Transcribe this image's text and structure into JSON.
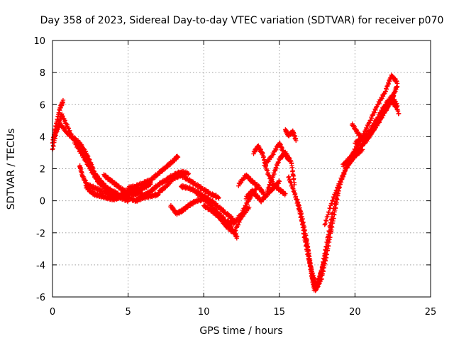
{
  "chart_data": {
    "type": "scatter",
    "title": "Day 358 of 2023, Sidereal Day-to-day VTEC variation (SDTVAR) for receiver p070",
    "xlabel": "GPS time / hours",
    "ylabel": "SDTVAR / TECUs",
    "xlim": [
      0,
      25
    ],
    "ylim": [
      -6,
      10
    ],
    "xticks": [
      0,
      5,
      10,
      15,
      20,
      25
    ],
    "yticks": [
      -6,
      -4,
      -2,
      0,
      2,
      4,
      6,
      8,
      10
    ],
    "xtick_labels": [
      "0",
      "5",
      "10",
      "15",
      "20",
      "25"
    ],
    "ytick_labels": [
      "-6",
      "-4",
      "-2",
      "0",
      "2",
      "4",
      "6",
      "8",
      "10"
    ],
    "grid": true,
    "marker": "plus",
    "series": [
      {
        "color": "#ff0000",
        "tracks": [
          {
            "x": [
              0.0,
              0.3,
              0.6,
              1.0,
              1.5,
              2.0,
              2.5,
              3.0,
              3.5,
              4.0,
              4.5,
              5.0,
              5.5,
              6.0
            ],
            "y": [
              3.2,
              4.5,
              5.4,
              4.6,
              3.6,
              2.8,
              2.0,
              1.2,
              0.8,
              0.4,
              0.3,
              0.5,
              0.6,
              0.4
            ]
          },
          {
            "x": [
              0.0,
              0.2,
              0.5,
              0.7
            ],
            "y": [
              3.6,
              4.6,
              5.8,
              6.2
            ]
          },
          {
            "x": [
              0.1,
              0.5,
              1.0,
              1.5,
              2.0,
              2.5,
              3.0,
              3.5,
              4.0,
              4.5,
              5.0,
              5.5,
              6.0,
              6.5,
              7.0
            ],
            "y": [
              4.0,
              4.8,
              4.2,
              3.8,
              3.0,
              2.0,
              1.3,
              0.8,
              0.6,
              0.3,
              0.2,
              0.0,
              0.2,
              0.3,
              0.4
            ]
          },
          {
            "x": [
              1.3,
              1.8,
              2.2,
              2.5,
              2.8,
              3.2,
              3.6,
              4.0,
              4.5,
              5.0
            ],
            "y": [
              4.0,
              3.6,
              3.0,
              2.4,
              1.7,
              1.2,
              0.8,
              0.5,
              0.2,
              0.0
            ]
          },
          {
            "x": [
              1.8,
              2.0,
              2.3,
              2.8,
              3.3,
              3.8,
              4.3
            ],
            "y": [
              2.2,
              1.5,
              1.0,
              0.8,
              0.6,
              0.4,
              0.2
            ]
          },
          {
            "x": [
              3.4,
              3.8,
              4.2,
              4.6,
              5.0,
              5.4,
              5.8
            ],
            "y": [
              1.6,
              1.3,
              1.0,
              0.7,
              0.5,
              0.4,
              0.5
            ]
          },
          {
            "x": [
              2.2,
              2.5,
              2.8,
              3.2,
              3.6,
              4.0,
              4.4,
              4.8,
              5.2,
              5.6
            ],
            "y": [
              0.9,
              0.6,
              0.4,
              0.3,
              0.2,
              0.1,
              0.2,
              0.3,
              0.5,
              0.9
            ]
          },
          {
            "x": [
              4.2,
              4.6,
              5.0,
              5.4,
              5.8,
              6.2,
              6.5
            ],
            "y": [
              0.2,
              0.4,
              0.6,
              0.8,
              0.7,
              0.9,
              1.1
            ]
          },
          {
            "x": [
              5.0,
              5.5,
              6.0,
              6.5,
              7.0,
              7.5,
              8.0,
              8.3
            ],
            "y": [
              0.8,
              0.9,
              1.1,
              1.3,
              1.7,
              2.1,
              2.5,
              2.8
            ]
          },
          {
            "x": [
              5.5,
              6.0,
              6.5,
              7.0,
              7.5,
              8.0,
              8.5,
              9.0
            ],
            "y": [
              0.0,
              0.3,
              0.6,
              1.0,
              1.3,
              1.6,
              1.8,
              1.7
            ]
          },
          {
            "x": [
              7.0,
              7.5,
              8.0,
              8.5,
              9.0,
              9.5,
              10.0,
              10.5,
              11.0
            ],
            "y": [
              0.5,
              0.9,
              1.4,
              1.6,
              1.3,
              1.0,
              0.7,
              0.4,
              0.2
            ]
          },
          {
            "x": [
              7.8,
              8.2,
              8.6,
              9.0,
              9.5,
              10.0,
              10.5
            ],
            "y": [
              -0.3,
              -0.8,
              -0.6,
              -0.3,
              0.0,
              0.1,
              -0.1
            ]
          },
          {
            "x": [
              8.5,
              9.0,
              9.5,
              10.0,
              10.5,
              11.0,
              11.5,
              12.0
            ],
            "y": [
              0.9,
              0.8,
              0.6,
              0.3,
              0.0,
              -0.4,
              -0.8,
              -1.2
            ]
          },
          {
            "x": [
              9.5,
              10.0,
              10.5,
              11.0,
              11.5,
              12.0,
              12.2
            ],
            "y": [
              0.5,
              0.2,
              -0.3,
              -0.8,
              -1.3,
              -1.9,
              -2.3
            ]
          },
          {
            "x": [
              10.0,
              10.5,
              11.0,
              11.5,
              12.0,
              12.5,
              13.0
            ],
            "y": [
              -0.3,
              -0.6,
              -1.0,
              -1.6,
              -2.0,
              -1.0,
              -0.4
            ]
          },
          {
            "x": [
              11.0,
              11.5,
              12.0,
              12.5,
              13.0,
              13.5
            ],
            "y": [
              -1.0,
              -1.3,
              -1.4,
              -0.8,
              0.1,
              0.8
            ]
          },
          {
            "x": [
              12.3,
              12.8,
              13.2,
              13.6,
              14.0
            ],
            "y": [
              1.0,
              1.6,
              1.2,
              0.9,
              0.4
            ]
          },
          {
            "x": [
              12.8,
              13.2,
              13.5,
              13.8,
              14.2,
              14.6,
              15.0
            ],
            "y": [
              0.2,
              0.6,
              0.3,
              0.0,
              0.4,
              0.8,
              1.2
            ]
          },
          {
            "x": [
              13.3,
              13.6,
              13.9,
              14.2,
              14.6,
              15.0,
              15.4
            ],
            "y": [
              3.0,
              3.4,
              2.9,
              1.8,
              1.0,
              0.7,
              0.4
            ]
          },
          {
            "x": [
              14.0,
              14.5,
              15.0,
              15.3,
              15.6
            ],
            "y": [
              2.2,
              2.8,
              3.6,
              3.0,
              2.6
            ]
          },
          {
            "x": [
              14.2,
              14.6,
              15.0,
              15.4,
              15.8,
              16.0
            ],
            "y": [
              0.6,
              1.6,
              2.6,
              3.0,
              2.4,
              1.0
            ]
          },
          {
            "x": [
              15.4,
              15.6,
              15.9,
              16.1
            ],
            "y": [
              4.4,
              4.1,
              4.3,
              3.8
            ]
          },
          {
            "x": [
              15.6,
              16.0,
              16.3,
              16.6,
              16.9,
              17.1,
              17.3,
              17.5,
              17.8,
              18.1,
              18.5,
              19.0,
              19.4,
              19.8,
              20.2
            ],
            "y": [
              1.5,
              0.5,
              -0.5,
              -1.8,
              -3.2,
              -4.5,
              -5.5,
              -5.2,
              -4.3,
              -2.8,
              -0.8,
              1.0,
              2.0,
              2.6,
              3.0
            ]
          },
          {
            "x": [
              16.2,
              16.5,
              16.8,
              17.0,
              17.2,
              17.4,
              17.6,
              17.9,
              18.2,
              18.5
            ],
            "y": [
              0.0,
              -1.0,
              -2.4,
              -3.6,
              -4.8,
              -5.6,
              -5.0,
              -4.0,
              -2.5,
              -1.0
            ]
          },
          {
            "x": [
              16.6,
              16.9,
              17.2,
              17.5,
              17.8,
              18.1,
              18.4,
              18.7,
              19.0
            ],
            "y": [
              -2.0,
              -3.5,
              -4.6,
              -5.4,
              -4.8,
              -3.5,
              -2.0,
              -0.5,
              1.0
            ]
          },
          {
            "x": [
              18.0,
              18.5,
              19.0,
              19.5,
              20.0,
              20.5
            ],
            "y": [
              -1.5,
              0.0,
              1.2,
              2.2,
              2.8,
              3.2
            ]
          },
          {
            "x": [
              19.2,
              19.6,
              20.0,
              20.5,
              21.0,
              21.5,
              22.0,
              22.5,
              22.8
            ],
            "y": [
              2.2,
              2.6,
              3.0,
              3.5,
              4.2,
              4.8,
              5.6,
              6.5,
              7.2
            ]
          },
          {
            "x": [
              19.6,
              20.0,
              20.5,
              21.0,
              21.5,
              22.0,
              22.4,
              22.8
            ],
            "y": [
              2.5,
              3.2,
              4.0,
              5.0,
              6.0,
              6.8,
              7.8,
              7.4
            ]
          },
          {
            "x": [
              19.8,
              20.2,
              20.6,
              21.0,
              21.5,
              22.0,
              22.4,
              22.8
            ],
            "y": [
              4.8,
              4.2,
              3.8,
              4.1,
              4.8,
              5.6,
              6.2,
              5.8
            ]
          },
          {
            "x": [
              20.0,
              20.5,
              21.0,
              21.5,
              22.0,
              22.5,
              22.9
            ],
            "y": [
              3.6,
              3.9,
              4.4,
              5.2,
              6.0,
              6.6,
              5.4
            ]
          },
          {
            "x": [
              20.4,
              20.8,
              21.2,
              21.6,
              22.0,
              22.4,
              22.8
            ],
            "y": [
              3.4,
              3.8,
              4.4,
              5.0,
              5.8,
              6.4,
              6.0
            ]
          }
        ]
      }
    ]
  }
}
